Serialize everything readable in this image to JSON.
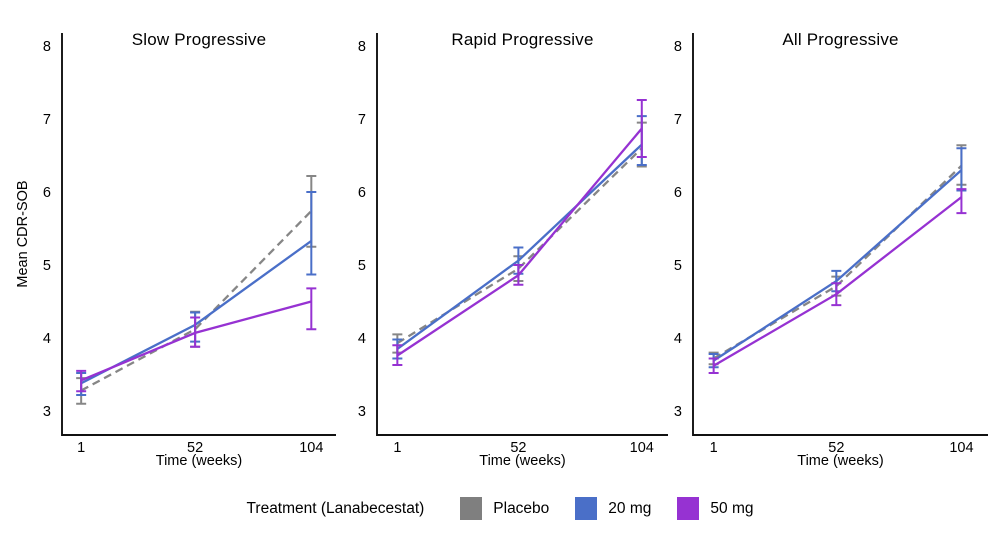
{
  "figure": {
    "y_axis_label": "Mean CDR-SOB",
    "x_axis_label": "Time (weeks)",
    "legend": {
      "title": "Treatment (Lanabecestat)",
      "items": [
        {
          "label": "Placebo",
          "color": "#7f7f7f",
          "linestyle": "dashed"
        },
        {
          "label": "20 mg",
          "color": "#4a6fc8",
          "linestyle": "solid"
        },
        {
          "label": "50 mg",
          "color": "#9632d2",
          "linestyle": "solid"
        }
      ]
    },
    "colors": {
      "placebo": "#868686",
      "mg20": "#4a6fc8",
      "mg50": "#9632d2",
      "axis": "#111111"
    }
  },
  "chart_data": [
    {
      "type": "line",
      "title": "Slow Progressive",
      "xlabel": "Time (weeks)",
      "ylabel": "Mean CDR-SOB",
      "x": [
        1,
        52,
        104
      ],
      "yticks": [
        3,
        4,
        5,
        6,
        7,
        8
      ],
      "ylim": [
        2.7,
        8.3
      ],
      "series": [
        {
          "name": "Placebo",
          "color": "#868686",
          "linestyle": "dashed",
          "values": [
            3.28,
            4.12,
            5.74
          ],
          "err_low": [
            3.1,
            3.88,
            5.25
          ],
          "err_high": [
            3.45,
            4.36,
            6.22
          ]
        },
        {
          "name": "20 mg",
          "color": "#4a6fc8",
          "linestyle": "solid",
          "values": [
            3.38,
            4.18,
            5.33
          ],
          "err_low": [
            3.22,
            3.95,
            4.87
          ],
          "err_high": [
            3.52,
            4.35,
            6.0
          ]
        },
        {
          "name": "50 mg",
          "color": "#9632d2",
          "linestyle": "solid",
          "values": [
            3.42,
            4.07,
            4.5
          ],
          "err_low": [
            3.27,
            3.88,
            4.12
          ],
          "err_high": [
            3.55,
            4.28,
            4.68
          ]
        }
      ]
    },
    {
      "type": "line",
      "title": "Rapid Progressive",
      "xlabel": "Time (weeks)",
      "ylabel": "Mean CDR-SOB",
      "x": [
        1,
        52,
        104
      ],
      "yticks": [
        3,
        4,
        5,
        6,
        7,
        8
      ],
      "ylim": [
        2.7,
        8.3
      ],
      "series": [
        {
          "name": "Placebo",
          "color": "#868686",
          "linestyle": "dashed",
          "values": [
            3.93,
            4.95,
            6.6
          ],
          "err_low": [
            3.8,
            4.78,
            6.35
          ],
          "err_high": [
            4.05,
            5.12,
            6.95
          ]
        },
        {
          "name": "20 mg",
          "color": "#4a6fc8",
          "linestyle": "solid",
          "values": [
            3.85,
            5.06,
            6.65
          ],
          "err_low": [
            3.72,
            4.88,
            6.37
          ],
          "err_high": [
            3.98,
            5.24,
            7.04
          ]
        },
        {
          "name": "50 mg",
          "color": "#9632d2",
          "linestyle": "solid",
          "values": [
            3.76,
            4.86,
            6.87
          ],
          "err_low": [
            3.63,
            4.73,
            6.48
          ],
          "err_high": [
            3.9,
            5.0,
            7.26
          ]
        }
      ]
    },
    {
      "type": "line",
      "title": "All Progressive",
      "xlabel": "Time (weeks)",
      "ylabel": "Mean CDR-SOB",
      "x": [
        1,
        52,
        104
      ],
      "yticks": [
        3,
        4,
        5,
        6,
        7,
        8
      ],
      "ylim": [
        2.7,
        8.3
      ],
      "series": [
        {
          "name": "Placebo",
          "color": "#868686",
          "linestyle": "dashed",
          "values": [
            3.72,
            4.71,
            6.36
          ],
          "err_low": [
            3.64,
            4.58,
            6.1
          ],
          "err_high": [
            3.8,
            4.84,
            6.64
          ]
        },
        {
          "name": "20 mg",
          "color": "#4a6fc8",
          "linestyle": "solid",
          "values": [
            3.69,
            4.78,
            6.3
          ],
          "err_low": [
            3.6,
            4.64,
            6.02
          ],
          "err_high": [
            3.78,
            4.92,
            6.6
          ]
        },
        {
          "name": "50 mg",
          "color": "#9632d2",
          "linestyle": "solid",
          "values": [
            3.62,
            4.6,
            5.93
          ],
          "err_low": [
            3.52,
            4.45,
            5.71
          ],
          "err_high": [
            3.72,
            4.75,
            6.04
          ]
        }
      ]
    }
  ]
}
